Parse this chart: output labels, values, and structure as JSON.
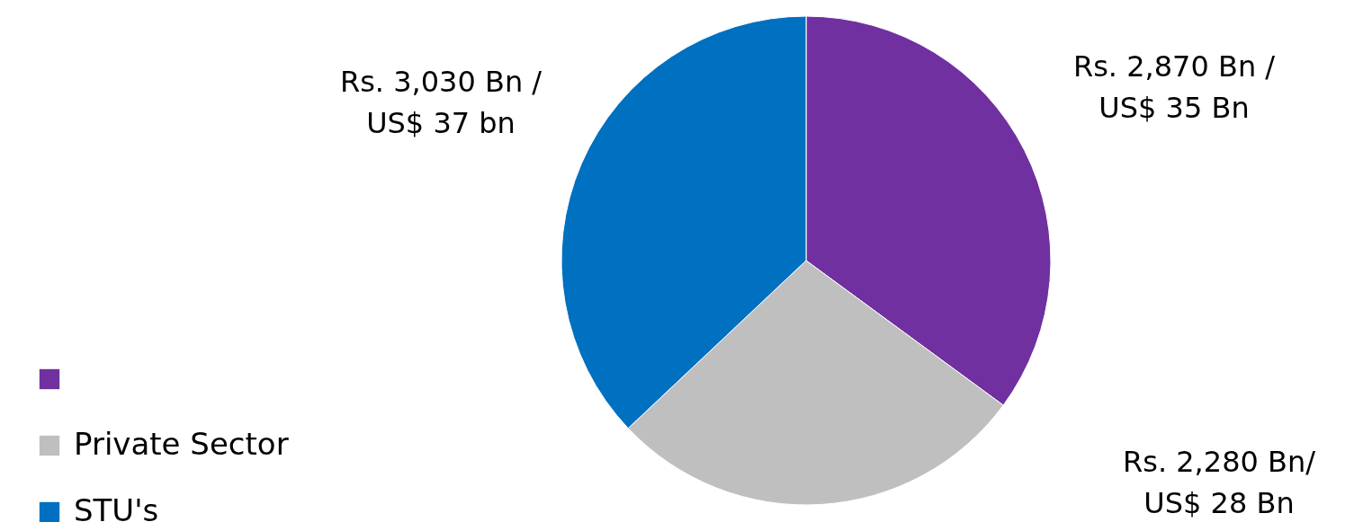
{
  "chart_data": {
    "type": "pie",
    "categories": [
      null,
      "Private Sector",
      "STU's"
    ],
    "values": [
      2870,
      2280,
      3030
    ],
    "colors": [
      "#7030a0",
      "#bfbfbf",
      "#0070c0"
    ],
    "value_labels": [
      "Rs. 2,870 Bn /\nUS$ 35 Bn",
      "Rs. 2,280 Bn/\nUS$ 28 Bn",
      "Rs. 3,030 Bn /\nUS$ 37 bn"
    ],
    "legend": "bottom left"
  }
}
